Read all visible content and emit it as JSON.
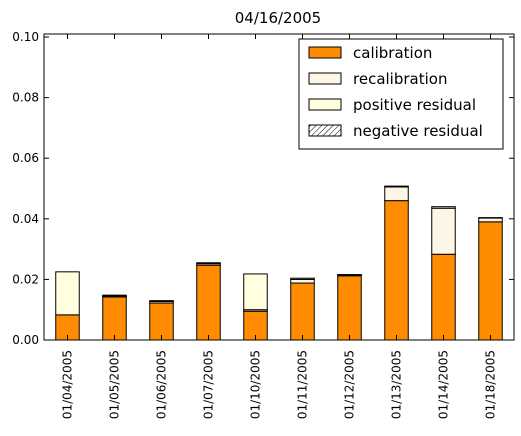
{
  "chart_data": {
    "type": "bar",
    "stacked": true,
    "title": "04/16/2005",
    "xlabel": "",
    "ylabel": "",
    "ylim": [
      0,
      0.101
    ],
    "yticks": [
      "0.00",
      "0.02",
      "0.04",
      "0.06",
      "0.08",
      "0.10"
    ],
    "yticks_values": [
      0,
      0.02,
      0.04,
      0.06,
      0.08,
      0.1
    ],
    "categories": [
      "01/04/2005",
      "01/05/2005",
      "01/06/2005",
      "01/07/2005",
      "01/10/2005",
      "01/11/2005",
      "01/12/2005",
      "01/13/2005",
      "01/14/2005",
      "01/18/2005"
    ],
    "legend_position": "top-right",
    "series": [
      {
        "name": "calibration",
        "color": "#ff8c00",
        "hatch": false,
        "values": [
          0.0083,
          0.0142,
          0.0122,
          0.0247,
          0.0095,
          0.0188,
          0.0212,
          0.046,
          0.0283,
          0.039
        ]
      },
      {
        "name": "recalibration",
        "color": "#fdf5e6",
        "hatch": false,
        "values": [
          0.0,
          0.0003,
          0.0005,
          0.0005,
          0.0005,
          0.0012,
          0.0003,
          0.0045,
          0.0152,
          0.0013
        ]
      },
      {
        "name": "positive residual",
        "color": "#ffffe0",
        "hatch": false,
        "values": [
          0.0142,
          0.0003,
          0.0003,
          0.0003,
          0.0118,
          0.0004,
          0.0001,
          0.0003,
          0.0005,
          0.0001
        ]
      },
      {
        "name": "negative residual",
        "color": "#ffffff",
        "hatch": true,
        "values": [
          0,
          0,
          0,
          0,
          0,
          0,
          0,
          0,
          0,
          0
        ]
      }
    ]
  }
}
